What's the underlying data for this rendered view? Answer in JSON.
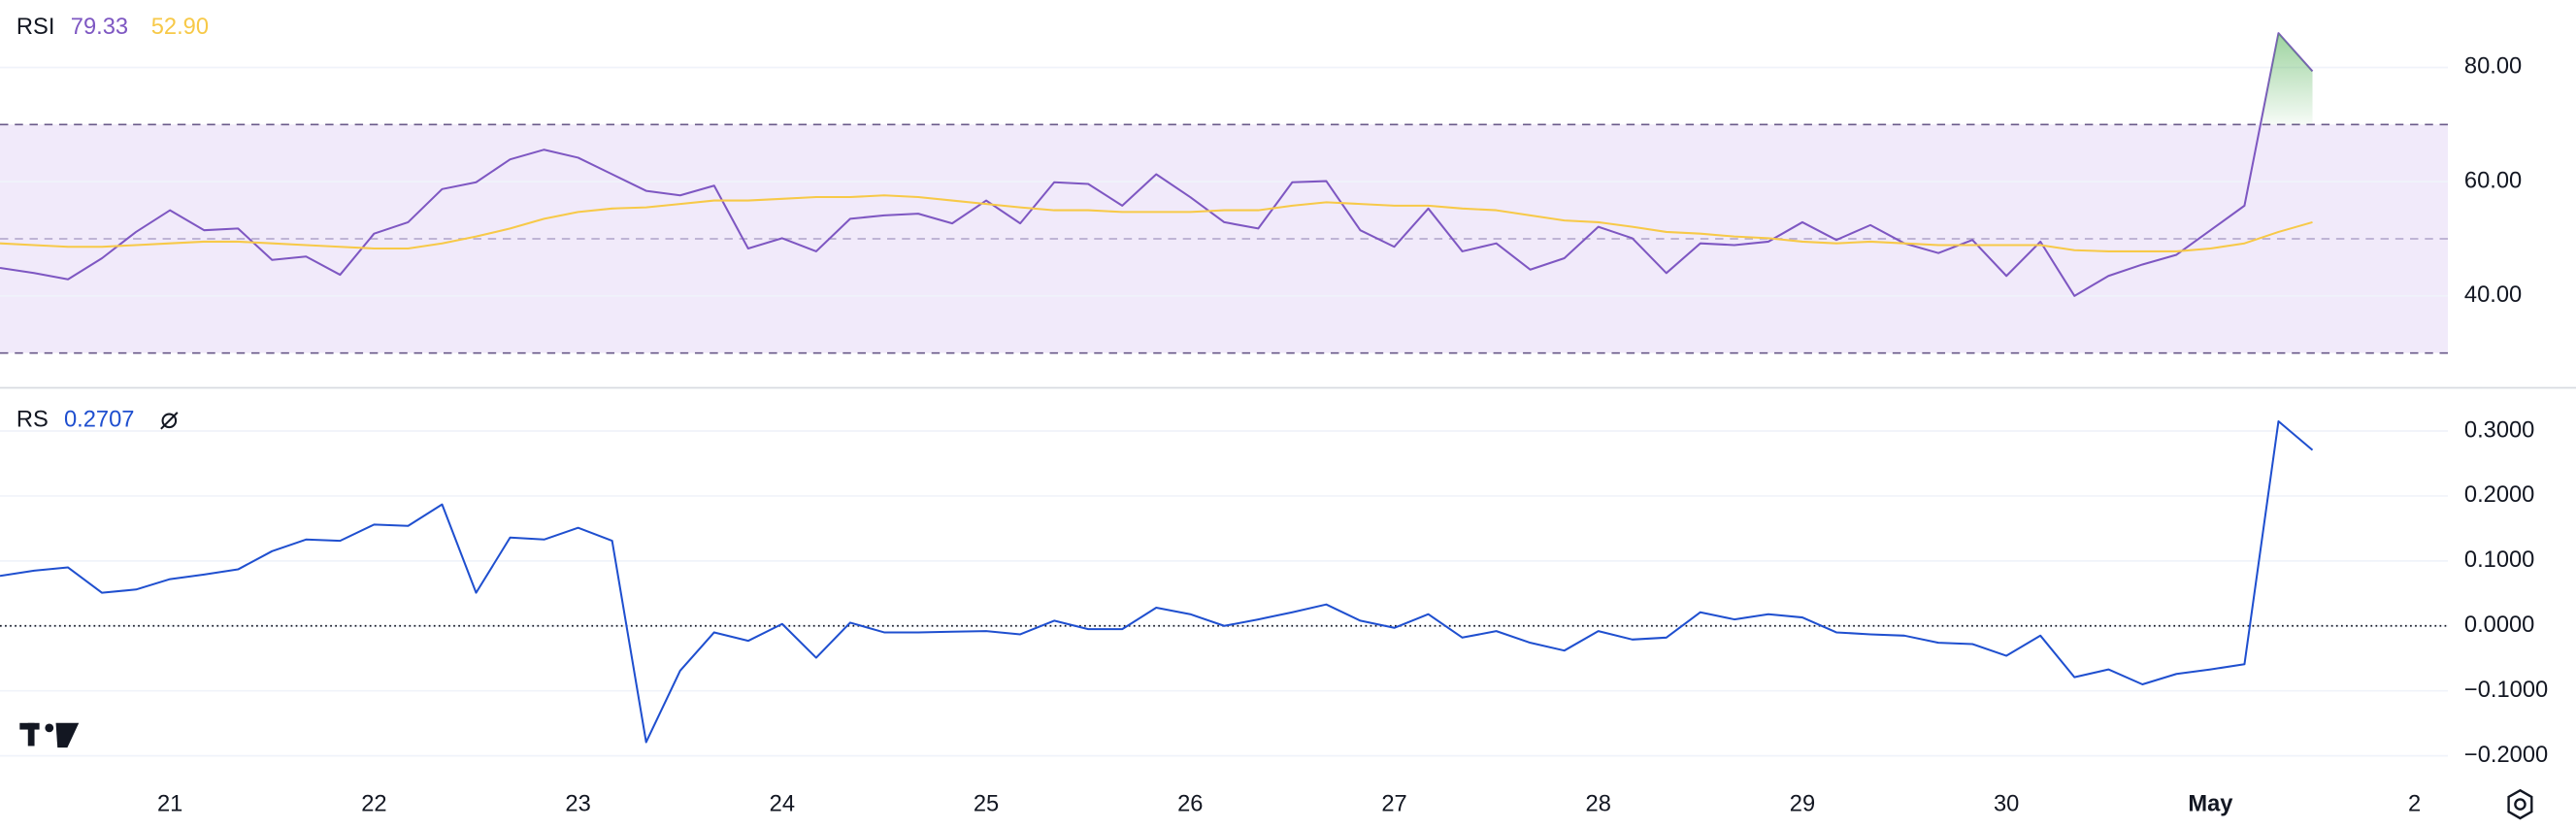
{
  "chart_data": [
    {
      "type": "line",
      "title": "RSI",
      "series": [
        {
          "color": "#7e57c2",
          "value_label": "79.33",
          "values": [
            44.9,
            44.0,
            42.9,
            46.6,
            51.2,
            55.0,
            51.5,
            51.8,
            46.3,
            46.9,
            43.7,
            50.9,
            52.9,
            58.7,
            59.9,
            63.9,
            65.6,
            64.2,
            61.3,
            58.4,
            57.6,
            59.3,
            48.3,
            50.1,
            47.8,
            53.5,
            54.1,
            54.4,
            52.7,
            56.7,
            52.7,
            59.9,
            59.6,
            55.8,
            61.3,
            57.3,
            52.9,
            51.8,
            59.9,
            60.1,
            51.5,
            48.6,
            55.3,
            47.8,
            49.2,
            44.6,
            46.6,
            52.1,
            50.1,
            44.0,
            49.2,
            48.9,
            49.5,
            52.9,
            49.8,
            52.4,
            49.2,
            47.5,
            49.8,
            43.5,
            49.5,
            40.0,
            43.5,
            45.5,
            47.2,
            51.5,
            55.8,
            86.0,
            79.33,
            null,
            null,
            null
          ]
        },
        {
          "color": "#f7c948",
          "value_label": "52.90",
          "values": [
            49.2,
            48.9,
            48.6,
            48.6,
            48.9,
            49.2,
            49.5,
            49.5,
            49.2,
            48.9,
            48.6,
            48.3,
            48.3,
            49.2,
            50.4,
            51.8,
            53.5,
            54.7,
            55.3,
            55.5,
            56.1,
            56.7,
            56.7,
            57.0,
            57.3,
            57.3,
            57.6,
            57.3,
            56.7,
            56.1,
            55.5,
            55.0,
            55.0,
            54.7,
            54.7,
            54.7,
            55.0,
            55.0,
            55.8,
            56.4,
            56.1,
            55.8,
            55.8,
            55.3,
            55.0,
            54.1,
            53.2,
            52.9,
            52.1,
            51.2,
            50.9,
            50.4,
            50.1,
            49.5,
            49.2,
            49.5,
            49.2,
            48.9,
            48.9,
            48.9,
            48.9,
            48.0,
            47.8,
            47.8,
            47.8,
            48.3,
            49.2,
            51.2,
            52.9,
            null,
            null,
            null
          ]
        }
      ],
      "ylim": [
        24.2,
        91.8
      ],
      "yticks": [
        {
          "value": 40,
          "label": "40.00"
        },
        {
          "value": 60,
          "label": "60.00"
        },
        {
          "value": 80,
          "label": "80.00"
        }
      ],
      "levels": [
        70,
        50,
        30
      ],
      "overbought_fill": "#4caf50",
      "band_color": "#f1eafa",
      "grid": true
    },
    {
      "type": "line",
      "title": "RS",
      "categories": [
        null,
        null,
        null,
        null,
        null,
        "21",
        null,
        null,
        null,
        null,
        null,
        "22",
        null,
        null,
        null,
        null,
        null,
        "23",
        null,
        null,
        null,
        null,
        null,
        "24",
        null,
        null,
        null,
        null,
        null,
        "25",
        null,
        null,
        null,
        null,
        null,
        "26",
        null,
        null,
        null,
        null,
        null,
        "27",
        null,
        null,
        null,
        null,
        null,
        "28",
        null,
        null,
        null,
        null,
        null,
        "29",
        null,
        null,
        null,
        null,
        null,
        "30",
        null,
        null,
        null,
        null,
        null,
        "May",
        null,
        null,
        null,
        null,
        null,
        "2"
      ],
      "series": [
        {
          "color": "#1f4fcf",
          "value_label": "0.2707",
          "values": [
            0.077,
            0.085,
            0.09,
            0.051,
            0.056,
            0.072,
            0.079,
            0.087,
            0.115,
            0.133,
            0.131,
            0.156,
            0.154,
            0.187,
            0.051,
            0.136,
            0.133,
            0.151,
            0.131,
            -0.179,
            -0.069,
            -0.01,
            -0.023,
            0.003,
            -0.049,
            0.005,
            -0.01,
            -0.01,
            -0.009,
            -0.008,
            -0.013,
            0.008,
            -0.005,
            -0.005,
            0.028,
            0.018,
            0.0,
            0.01,
            0.021,
            0.033,
            0.008,
            -0.003,
            0.018,
            -0.018,
            -0.008,
            -0.026,
            -0.038,
            -0.008,
            -0.021,
            -0.018,
            0.021,
            0.01,
            0.018,
            0.013,
            -0.01,
            -0.013,
            -0.015,
            -0.026,
            -0.028,
            -0.046,
            -0.015,
            -0.079,
            -0.067,
            -0.09,
            -0.074,
            -0.067,
            -0.059,
            0.315,
            0.2707,
            null,
            null,
            null
          ]
        }
      ],
      "ylim": [
        -0.238,
        0.364
      ],
      "yticks": [
        {
          "value": 0.3,
          "label": "0.3000"
        },
        {
          "value": 0.2,
          "label": "0.2000"
        },
        {
          "value": 0.1,
          "label": "0.1000"
        },
        {
          "value": 0,
          "label": "0.0000"
        },
        {
          "value": -0.1,
          "label": "−0.1000"
        },
        {
          "value": -0.2,
          "label": "−0.2000"
        }
      ],
      "levels": [
        0
      ],
      "grid": true
    }
  ]
}
